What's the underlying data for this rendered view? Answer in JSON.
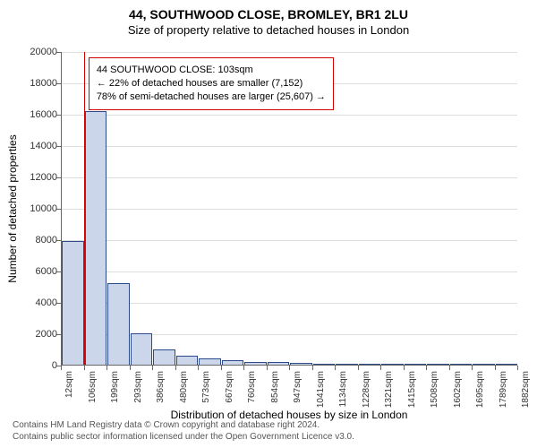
{
  "title": "44, SOUTHWOOD CLOSE, BROMLEY, BR1 2LU",
  "subtitle": "Size of property relative to detached houses in London",
  "chart": {
    "type": "histogram",
    "x_label": "Distribution of detached houses by size in London",
    "y_label": "Number of detached properties",
    "ylim": [
      0,
      20000
    ],
    "ytick_step": 2000,
    "y_ticks": [
      0,
      2000,
      4000,
      6000,
      8000,
      10000,
      12000,
      14000,
      16000,
      18000,
      20000
    ],
    "x_ticks": [
      "12sqm",
      "106sqm",
      "199sqm",
      "293sqm",
      "386sqm",
      "480sqm",
      "573sqm",
      "667sqm",
      "760sqm",
      "854sqm",
      "947sqm",
      "1041sqm",
      "1134sqm",
      "1228sqm",
      "1321sqm",
      "1415sqm",
      "1508sqm",
      "1602sqm",
      "1695sqm",
      "1789sqm",
      "1882sqm"
    ],
    "bar_values": [
      7900,
      16200,
      5200,
      2000,
      1000,
      600,
      400,
      300,
      200,
      150,
      100,
      80,
      60,
      50,
      40,
      30,
      20,
      20,
      15,
      10
    ],
    "bar_fill": "#cbd6ea",
    "bar_stroke": "#2d4a8a",
    "grid_color": "#dddddd",
    "axis_color": "#666666",
    "background_color": "#ffffff",
    "tick_fontsize": 11,
    "label_fontsize": 12,
    "title_fontsize": 14,
    "marker_value_sqm": 103,
    "marker_color": "#d00000",
    "annotation": {
      "line1": "44 SOUTHWOOD CLOSE: 103sqm",
      "line2": "← 22% of detached houses are smaller (7,152)",
      "line3": "78% of semi-detached houses are larger (25,607) →",
      "border_color": "#d00000",
      "fontsize": 11
    }
  },
  "footer": {
    "line1": "Contains HM Land Registry data © Crown copyright and database right 2024.",
    "line2": "Contains public sector information licensed under the Open Government Licence v3.0."
  }
}
